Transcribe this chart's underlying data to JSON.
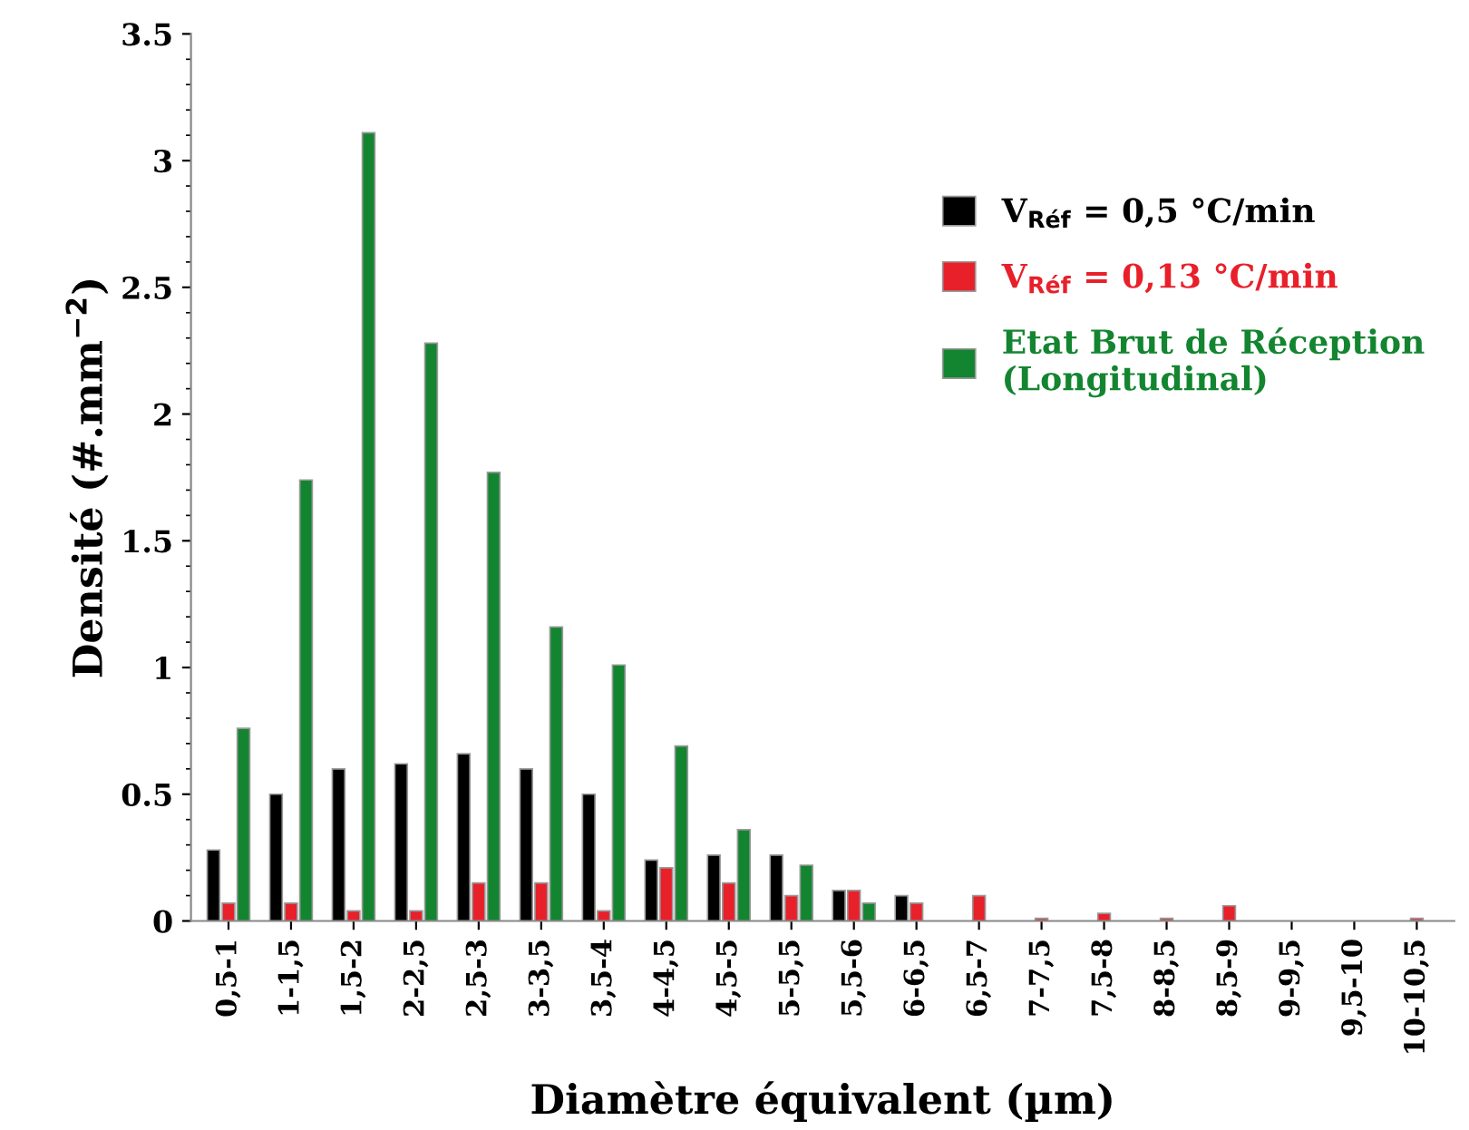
{
  "chart_data": {
    "type": "bar",
    "xlabel": "Diamètre équivalent (µm)",
    "ylabel": "Densité (#.mm$^{−2}$)",
    "categories": [
      "0,5-1",
      "1-1,5",
      "1,5-2",
      "2-2,5",
      "2,5-3",
      "3-3,5",
      "3,5-4",
      "4-4,5",
      "4,5-5",
      "5-5,5",
      "5,5-6",
      "6-6,5",
      "6,5-7",
      "7-7,5",
      "7,5-8",
      "8-8,5",
      "8,5-9",
      "9-9,5",
      "9,5-10",
      "10-10,5"
    ],
    "series": [
      {
        "name": "V$_{Réf}$ = 0,5 °C/min",
        "color": "#000000",
        "values": [
          0.28,
          0.5,
          0.6,
          0.62,
          0.66,
          0.6,
          0.5,
          0.24,
          0.26,
          0.26,
          0.12,
          0.1,
          null,
          null,
          null,
          null,
          null,
          null,
          null,
          null
        ]
      },
      {
        "name": "V$_{Réf}$ = 0,13 °C/min",
        "color": "#e8202a",
        "values": [
          0.07,
          0.07,
          0.04,
          0.04,
          0.15,
          0.15,
          0.04,
          0.21,
          0.15,
          0.1,
          0.12,
          0.07,
          0.1,
          0.01,
          0.03,
          0.01,
          0.06,
          null,
          null,
          0.01
        ]
      },
      {
        "name": "Etat Brut de Réception\n(Longitudinal)",
        "color": "#138530",
        "values": [
          0.76,
          1.74,
          3.11,
          2.28,
          1.77,
          1.16,
          1.01,
          0.69,
          0.36,
          0.22,
          0.07,
          null,
          null,
          null,
          null,
          null,
          null,
          null,
          null,
          null
        ]
      }
    ],
    "ylim": [
      0,
      3.5
    ],
    "yticks": [
      0,
      {
        "value": 0.5,
        "label": "0.5"
      },
      1,
      {
        "value": 1.5,
        "label": "1.5"
      },
      2,
      {
        "value": 2.5,
        "label": "2.5"
      },
      3,
      {
        "value": 3.5,
        "label": "3.5"
      }
    ],
    "grid": false,
    "legend": "top right"
  }
}
